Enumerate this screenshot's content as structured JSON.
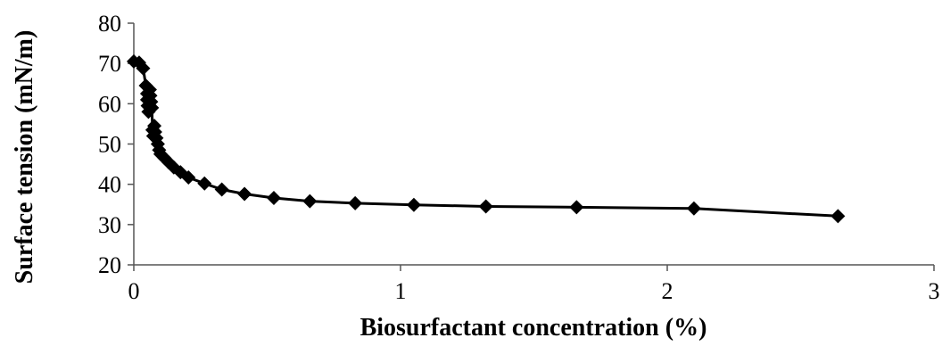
{
  "chart_data": {
    "type": "line",
    "title": "",
    "xlabel": "Biosurfactant concentration (%)",
    "ylabel": "Surface tension (mN/m)",
    "xlim": [
      0,
      3
    ],
    "ylim": [
      20,
      80
    ],
    "xticks": [
      0,
      1,
      2,
      3
    ],
    "yticks": [
      20,
      30,
      40,
      50,
      60,
      70,
      80
    ],
    "grid": false,
    "legend": "none",
    "series": [
      {
        "marker": "diamond",
        "color": "#000000",
        "points": [
          {
            "x": 0.0,
            "y": 70.5
          },
          {
            "x": 0.02,
            "y": 70.2
          },
          {
            "x": 0.035,
            "y": 68.8
          },
          {
            "x": 0.045,
            "y": 64.5
          },
          {
            "x": 0.05,
            "y": 62.5
          },
          {
            "x": 0.05,
            "y": 61.0
          },
          {
            "x": 0.052,
            "y": 59.5
          },
          {
            "x": 0.055,
            "y": 58.0
          },
          {
            "x": 0.06,
            "y": 63.5
          },
          {
            "x": 0.062,
            "y": 62.0
          },
          {
            "x": 0.065,
            "y": 60.5
          },
          {
            "x": 0.068,
            "y": 59.0
          },
          {
            "x": 0.07,
            "y": 53.5
          },
          {
            "x": 0.073,
            "y": 52.0
          },
          {
            "x": 0.077,
            "y": 54.5
          },
          {
            "x": 0.08,
            "y": 53.0
          },
          {
            "x": 0.085,
            "y": 51.5
          },
          {
            "x": 0.09,
            "y": 50.0
          },
          {
            "x": 0.095,
            "y": 48.5
          },
          {
            "x": 0.1,
            "y": 47.5
          },
          {
            "x": 0.115,
            "y": 46.5
          },
          {
            "x": 0.13,
            "y": 45.5
          },
          {
            "x": 0.15,
            "y": 44.2
          },
          {
            "x": 0.175,
            "y": 43.0
          },
          {
            "x": 0.205,
            "y": 41.7
          },
          {
            "x": 0.265,
            "y": 40.2
          },
          {
            "x": 0.33,
            "y": 38.7
          },
          {
            "x": 0.415,
            "y": 37.6
          },
          {
            "x": 0.525,
            "y": 36.6
          },
          {
            "x": 0.66,
            "y": 35.8
          },
          {
            "x": 0.83,
            "y": 35.3
          },
          {
            "x": 1.05,
            "y": 34.9
          },
          {
            "x": 1.32,
            "y": 34.5
          },
          {
            "x": 1.66,
            "y": 34.3
          },
          {
            "x": 2.1,
            "y": 34.0
          },
          {
            "x": 2.64,
            "y": 32.1
          }
        ]
      }
    ]
  }
}
